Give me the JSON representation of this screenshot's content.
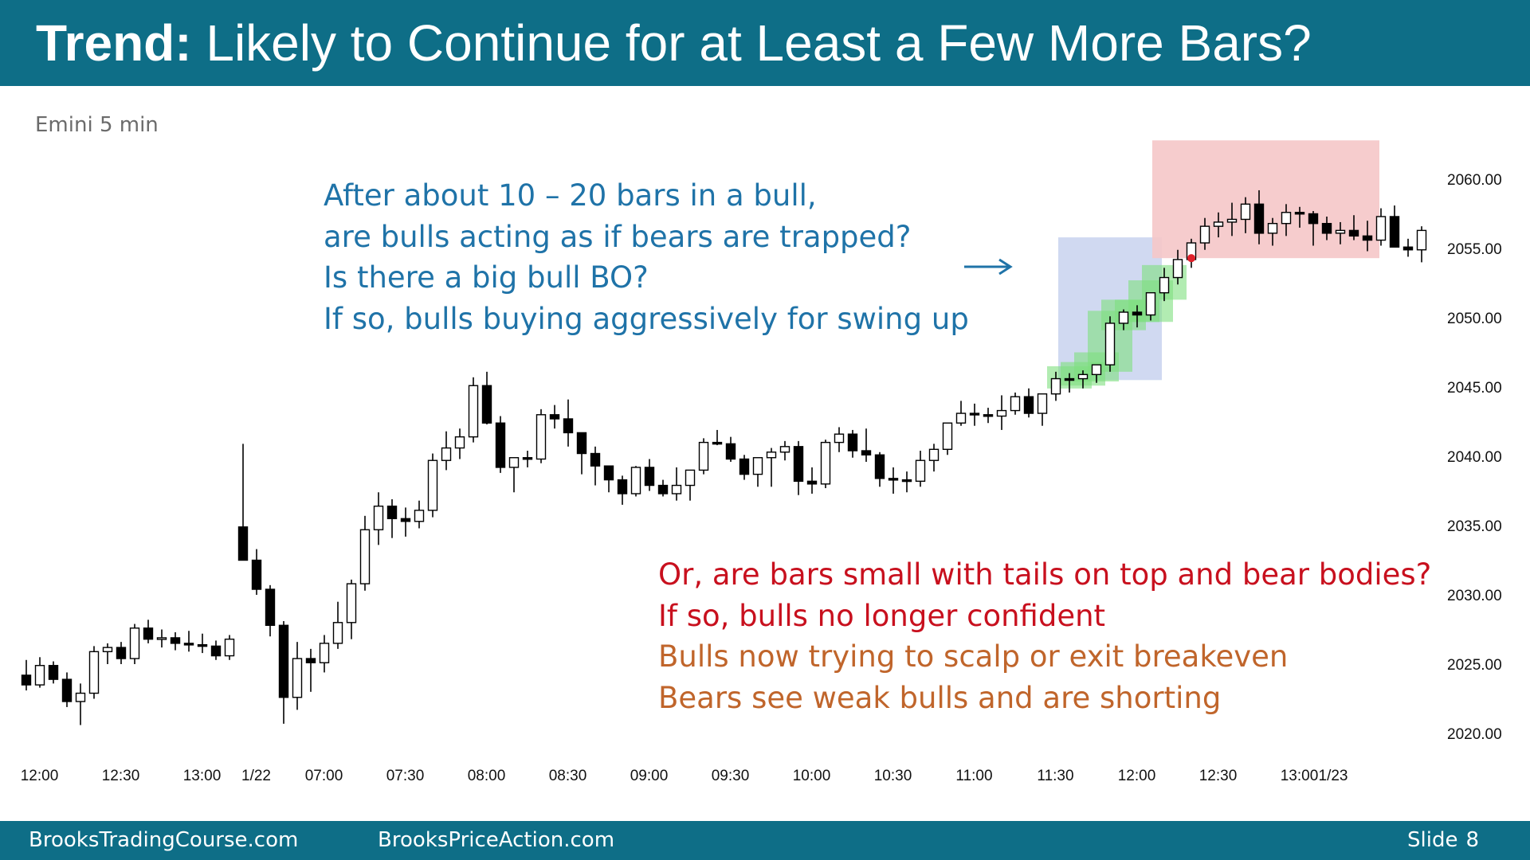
{
  "slide": {
    "title_bold": "Trend:",
    "title_rest": " Likely to Continue for at Least a Few More Bars?",
    "subtitle": "Emini 5 min",
    "blue_note": [
      "After about 10 – 20 bars in a bull,",
      "are bulls acting as if bears are trapped?",
      "Is there a big bull BO?",
      "If so, bulls buying aggressively for swing up"
    ],
    "red_note": [
      "Or, are bars small with tails on top and bear bodies?",
      "If so, bulls no longer confident"
    ],
    "orange_note": [
      "Bulls now trying to scalp or exit breakeven",
      "Bears see weak bulls and are shorting"
    ],
    "arrow_icon": "right-arrow",
    "footer": {
      "left": "BrooksTradingCourse.com",
      "middle": "BrooksPriceAction.com",
      "slide_label": "Slide",
      "slide_number": "8"
    },
    "colors": {
      "header": "#0e6e87",
      "blue_text": "#1f73a8",
      "red_text": "#c8101e",
      "orange_text": "#c0652b",
      "blue_zone": "#c8d2ef",
      "red_zone": "#f5c6c8",
      "green_highlight": "#7fe07f"
    }
  },
  "chart_data": {
    "type": "candlestick",
    "title": "",
    "ylim": [
      2018,
      2060
    ],
    "y_ticks": [
      "2060.00",
      "2055.00",
      "2050.00",
      "2045.00",
      "2040.00",
      "2035.00",
      "2030.00",
      "2025.00",
      "2020.00"
    ],
    "y_tick_values": [
      2060,
      2055,
      2050,
      2045,
      2040,
      2035,
      2030,
      2025,
      2020
    ],
    "x_ticks": [
      "12:00",
      "12:30",
      "13:00",
      "1/22",
      "07:00",
      "07:30",
      "08:00",
      "08:30",
      "09:00",
      "09:30",
      "10:00",
      "10:30",
      "11:00",
      "11:30",
      "12:00",
      "12:30",
      "13:00",
      "1/23"
    ],
    "x_tick_index": [
      0.5,
      6.5,
      12.5,
      16.5,
      21.5,
      27.5,
      33.5,
      39.5,
      45.5,
      51.5,
      57.5,
      63.5,
      69.5,
      75.5,
      81.5,
      87.5,
      93.5,
      96
    ],
    "bars": [
      [
        2024.2,
        2025.3,
        2023.1,
        2023.5
      ],
      [
        2023.5,
        2025.5,
        2023.3,
        2024.9
      ],
      [
        2024.9,
        2025.2,
        2023.6,
        2023.9
      ],
      [
        2023.9,
        2024.4,
        2021.9,
        2022.3
      ],
      [
        2022.3,
        2023.6,
        2020.6,
        2022.9
      ],
      [
        2022.9,
        2026.3,
        2022.5,
        2025.9
      ],
      [
        2025.9,
        2026.5,
        2025.0,
        2026.2
      ],
      [
        2026.2,
        2026.6,
        2025.0,
        2025.4
      ],
      [
        2025.4,
        2027.9,
        2025.0,
        2027.6
      ],
      [
        2027.6,
        2028.2,
        2026.5,
        2026.8
      ],
      [
        2026.8,
        2027.5,
        2026.2,
        2026.9
      ],
      [
        2026.9,
        2027.3,
        2026.0,
        2026.5
      ],
      [
        2026.5,
        2027.4,
        2025.9,
        2026.4
      ],
      [
        2026.4,
        2027.2,
        2025.8,
        2026.3
      ],
      [
        2026.3,
        2026.7,
        2025.3,
        2025.6
      ],
      [
        2025.6,
        2027.1,
        2025.3,
        2026.8
      ],
      [
        2034.9,
        2040.9,
        2033.9,
        2032.5
      ],
      [
        2032.5,
        2033.3,
        2030.0,
        2030.4
      ],
      [
        2030.4,
        2030.7,
        2027.0,
        2027.8
      ],
      [
        2027.8,
        2028.1,
        2020.7,
        2022.6
      ],
      [
        2022.6,
        2026.6,
        2021.7,
        2025.4
      ],
      [
        2025.4,
        2026.1,
        2023.0,
        2025.1
      ],
      [
        2025.1,
        2027.1,
        2024.4,
        2026.5
      ],
      [
        2026.5,
        2029.5,
        2026.1,
        2028.0
      ],
      [
        2028.0,
        2031.1,
        2026.8,
        2030.8
      ],
      [
        2030.8,
        2035.7,
        2030.3,
        2034.7
      ],
      [
        2034.7,
        2037.4,
        2033.6,
        2036.4
      ],
      [
        2036.4,
        2036.9,
        2034.1,
        2035.5
      ],
      [
        2035.5,
        2036.3,
        2034.2,
        2035.3
      ],
      [
        2035.3,
        2036.8,
        2034.8,
        2036.1
      ],
      [
        2036.1,
        2040.2,
        2035.6,
        2039.7
      ],
      [
        2039.7,
        2041.8,
        2039.0,
        2040.6
      ],
      [
        2040.6,
        2042.0,
        2039.8,
        2041.4
      ],
      [
        2041.4,
        2045.7,
        2041.0,
        2045.1
      ],
      [
        2045.1,
        2046.1,
        2042.3,
        2042.4
      ],
      [
        2042.4,
        2042.9,
        2038.8,
        2039.2
      ],
      [
        2039.2,
        2039.7,
        2037.4,
        2039.9
      ],
      [
        2039.9,
        2040.4,
        2039.2,
        2039.8
      ],
      [
        2039.8,
        2043.4,
        2039.5,
        2043.0
      ],
      [
        2043.0,
        2043.7,
        2042.0,
        2042.7
      ],
      [
        2042.7,
        2044.1,
        2040.7,
        2041.7
      ],
      [
        2041.7,
        2041.5,
        2038.7,
        2040.2
      ],
      [
        2040.2,
        2040.7,
        2037.9,
        2039.3
      ],
      [
        2039.3,
        2039.3,
        2037.4,
        2038.3
      ],
      [
        2038.3,
        2038.6,
        2036.5,
        2037.3
      ],
      [
        2037.3,
        2039.3,
        2037.1,
        2039.2
      ],
      [
        2039.2,
        2039.8,
        2037.5,
        2037.9
      ],
      [
        2037.9,
        2038.3,
        2037.1,
        2037.3
      ],
      [
        2037.3,
        2039.2,
        2036.8,
        2037.9
      ],
      [
        2037.9,
        2038.8,
        2036.8,
        2039.0
      ],
      [
        2039.0,
        2041.3,
        2038.7,
        2041.0
      ],
      [
        2041.0,
        2041.9,
        2040.8,
        2040.9
      ],
      [
        2040.9,
        2041.4,
        2039.6,
        2039.8
      ],
      [
        2039.8,
        2040.1,
        2038.3,
        2038.7
      ],
      [
        2038.7,
        2039.4,
        2037.8,
        2039.9
      ],
      [
        2039.9,
        2040.6,
        2037.8,
        2040.3
      ],
      [
        2040.3,
        2041.1,
        2039.7,
        2040.7
      ],
      [
        2040.7,
        2041.1,
        2037.2,
        2038.2
      ],
      [
        2038.2,
        2039.2,
        2037.3,
        2038.0
      ],
      [
        2038.0,
        2041.2,
        2037.7,
        2041.0
      ],
      [
        2041.0,
        2042.1,
        2040.3,
        2041.6
      ],
      [
        2041.6,
        2041.9,
        2039.9,
        2040.4
      ],
      [
        2040.4,
        2042.0,
        2039.6,
        2040.1
      ],
      [
        2040.1,
        2040.3,
        2037.8,
        2038.4
      ],
      [
        2038.4,
        2039.2,
        2037.3,
        2038.3
      ],
      [
        2038.3,
        2038.9,
        2037.4,
        2038.2
      ],
      [
        2038.2,
        2040.4,
        2037.8,
        2039.7
      ],
      [
        2039.7,
        2040.9,
        2038.9,
        2040.5
      ],
      [
        2040.5,
        2042.3,
        2040.1,
        2042.4
      ],
      [
        2042.4,
        2044.0,
        2042.2,
        2043.1
      ],
      [
        2043.1,
        2043.8,
        2042.2,
        2043.0
      ],
      [
        2043.0,
        2043.5,
        2042.4,
        2042.9
      ],
      [
        2042.9,
        2044.4,
        2041.9,
        2043.3
      ],
      [
        2043.3,
        2044.6,
        2043.0,
        2044.3
      ],
      [
        2044.3,
        2044.9,
        2042.8,
        2043.1
      ],
      [
        2043.1,
        2044.5,
        2042.2,
        2044.5
      ],
      [
        2044.5,
        2046.1,
        2044.0,
        2045.6
      ],
      [
        2045.6,
        2046.0,
        2044.6,
        2045.5
      ],
      [
        2045.6,
        2046.2,
        2044.9,
        2045.9
      ],
      [
        2045.9,
        2046.6,
        2045.3,
        2046.6
      ],
      [
        2046.6,
        2050.1,
        2046.1,
        2049.6
      ],
      [
        2049.6,
        2050.6,
        2049.1,
        2050.4
      ],
      [
        2050.4,
        2050.9,
        2049.3,
        2050.2
      ],
      [
        2050.2,
        2051.1,
        2049.8,
        2051.8
      ],
      [
        2051.8,
        2053.6,
        2051.2,
        2052.9
      ],
      [
        2052.9,
        2054.9,
        2052.4,
        2054.2
      ],
      [
        2054.2,
        2055.7,
        2053.6,
        2055.4
      ],
      [
        2055.4,
        2057.2,
        2054.9,
        2056.6
      ],
      [
        2056.6,
        2057.6,
        2055.8,
        2056.9
      ],
      [
        2056.9,
        2058.3,
        2055.9,
        2057.1
      ],
      [
        2057.1,
        2058.7,
        2056.1,
        2058.2
      ],
      [
        2058.2,
        2059.2,
        2055.3,
        2056.1
      ],
      [
        2056.1,
        2057.2,
        2055.2,
        2056.8
      ],
      [
        2056.8,
        2058.2,
        2055.9,
        2057.6
      ],
      [
        2057.6,
        2058.0,
        2056.5,
        2057.5
      ],
      [
        2057.5,
        2057.7,
        2055.2,
        2056.8
      ],
      [
        2056.8,
        2057.3,
        2055.6,
        2056.1
      ],
      [
        2056.1,
        2056.9,
        2055.3,
        2056.3
      ],
      [
        2056.3,
        2057.4,
        2055.6,
        2055.9
      ],
      [
        2055.9,
        2057.0,
        2054.8,
        2055.6
      ],
      [
        2055.6,
        2057.9,
        2055.2,
        2057.3
      ],
      [
        2057.3,
        2058.1,
        2055.3,
        2055.1
      ],
      [
        2055.1,
        2055.7,
        2054.4,
        2054.9
      ],
      [
        2054.9,
        2056.6,
        2054.0,
        2056.3
      ]
    ],
    "blue_zone": {
      "from_index": 77,
      "to_index": 83,
      "ylim": [
        2045.5,
        2055.8
      ]
    },
    "red_zone": {
      "from_index": 84,
      "to_index": 99,
      "ylim": [
        2054.3,
        2062.8
      ]
    },
    "green_highlight_indices": [
      77,
      78,
      79,
      80,
      81,
      82,
      83,
      84
    ]
  }
}
